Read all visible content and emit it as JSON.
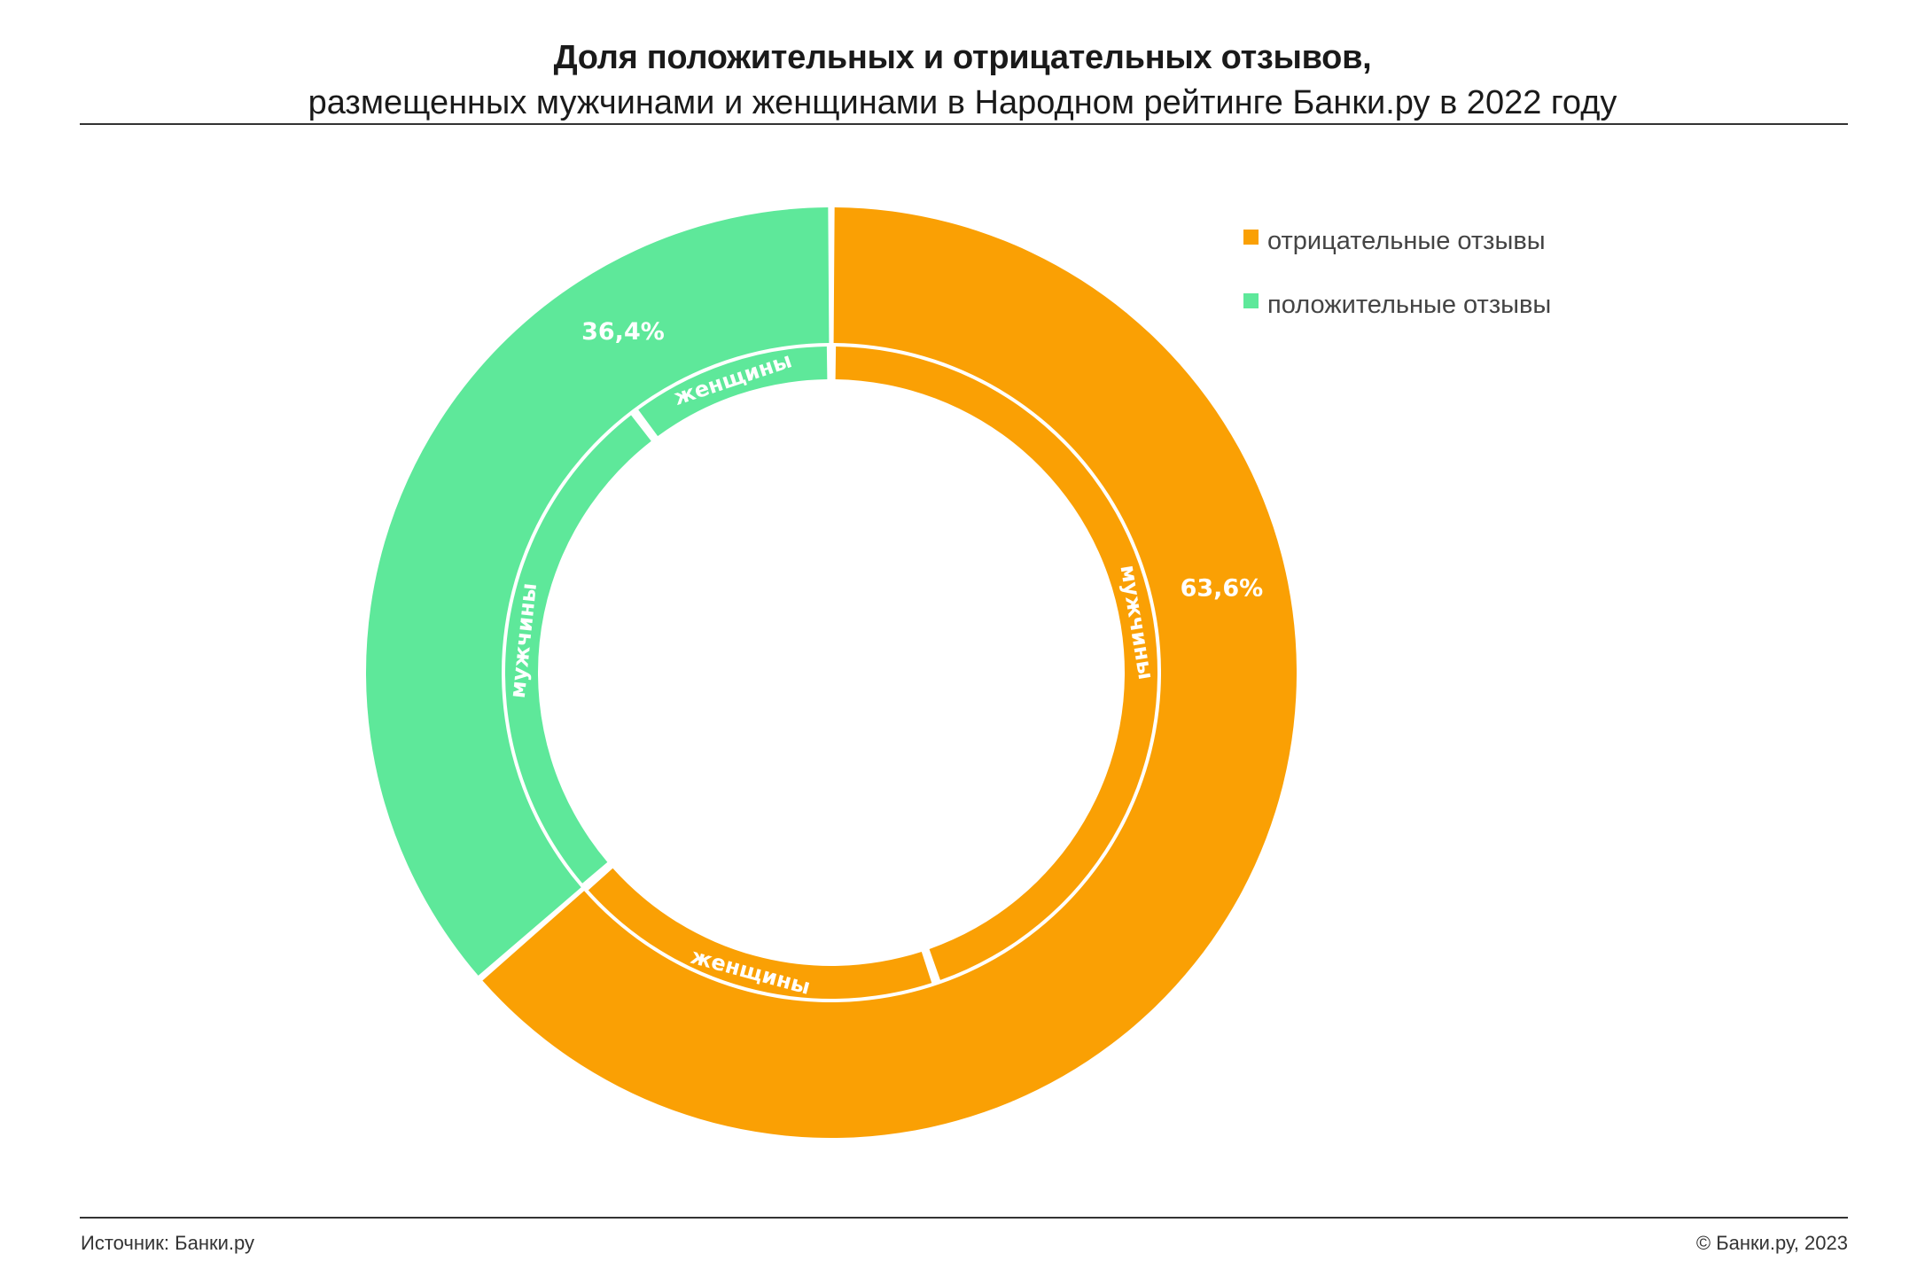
{
  "header": {
    "title": "Доля положительных и отрицательных отзывов,",
    "subtitle": "размещенных мужчинами и женщинами в Народном рейтинге Банки.ру в 2022 году"
  },
  "footer": {
    "source": "Источник: Банки.ру",
    "copyright": "© Банки.ру, 2023"
  },
  "colors": {
    "negative": "#FAA004",
    "positive": "#5EE89A"
  },
  "chart_data": {
    "type": "pie",
    "subtype": "nested-donut",
    "legend_position": "top-right",
    "legend": [
      {
        "name": "отрицательные отзывы",
        "color": "#FAA004"
      },
      {
        "name": "положительные отзывы",
        "color": "#5EE89A"
      }
    ],
    "outer": [
      {
        "category": "отрицательные отзывы",
        "value": 63.6,
        "label": "63,6%",
        "color": "#FAA004"
      },
      {
        "category": "положительные отзывы",
        "value": 36.4,
        "label": "36,4%",
        "color": "#5EE89A"
      }
    ],
    "inner": [
      {
        "category": "отрицательные отзывы",
        "group": "мужчины",
        "value": 44.8,
        "label": "мужчины",
        "color": "#FAA004"
      },
      {
        "category": "отрицательные отзывы",
        "group": "женщины",
        "value": 18.8,
        "label": "женщины",
        "color": "#FAA004"
      },
      {
        "category": "положительные отзывы",
        "group": "мужчины",
        "value": 26.1,
        "label": "мужчины",
        "color": "#5EE89A"
      },
      {
        "category": "положительные отзывы",
        "group": "женщины",
        "value": 10.3,
        "label": "женщины",
        "color": "#5EE89A"
      }
    ]
  }
}
